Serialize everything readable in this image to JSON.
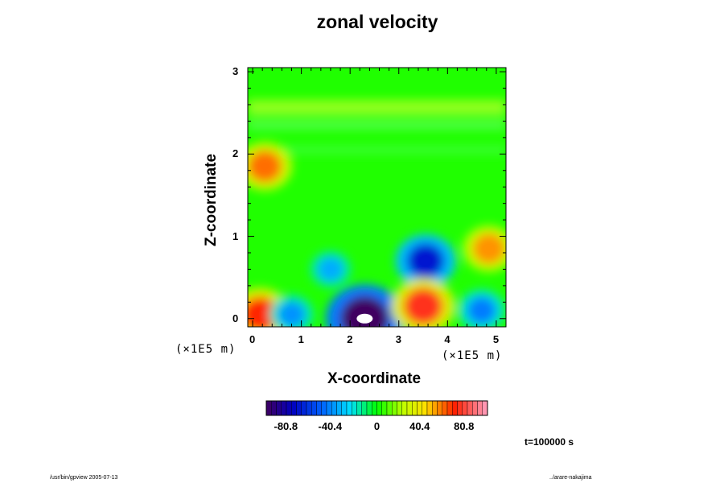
{
  "chart_data": {
    "type": "heatmap",
    "title": "zonal velocity",
    "xlabel": "X-coordinate",
    "ylabel": "Z-coordinate",
    "x_unit": "(×1E5 m)",
    "y_unit": "(×1E5 m)",
    "xlim": [
      -0.1,
      5.2
    ],
    "ylim": [
      -0.1,
      3.05
    ],
    "x_ticks": [
      "0",
      "1",
      "2",
      "3",
      "4",
      "5"
    ],
    "y_ticks": [
      "0",
      "1",
      "2",
      "3"
    ],
    "colorbar": {
      "range": [
        -101,
        101
      ],
      "tick_values": [
        -80.8,
        -40.4,
        0,
        40.4,
        80.8
      ],
      "tick_labels": [
        "-80.8",
        "-40.4",
        "0",
        "40.4",
        "80.8"
      ],
      "colormap": "rainbow (purple-blue-cyan-green-yellow-red-pink)"
    },
    "features": [
      {
        "x": 2.3,
        "z": 0.0,
        "value": -101
      },
      {
        "x": 3.55,
        "z": 0.7,
        "value": -70
      },
      {
        "x": 3.5,
        "z": 0.15,
        "value": 75
      },
      {
        "x": 0.15,
        "z": 0.05,
        "value": 70
      },
      {
        "x": 4.85,
        "z": 0.85,
        "value": 55
      },
      {
        "x": 0.25,
        "z": 1.85,
        "value": 60
      },
      {
        "x": 4.7,
        "z": 0.1,
        "value": -45
      },
      {
        "x": 1.6,
        "z": 0.6,
        "value": -35
      },
      {
        "x": 0.8,
        "z": 0.05,
        "value": -40
      }
    ],
    "grid": false,
    "legend": "colorbar bottom"
  },
  "time_label": "t=100000 s",
  "footer": {
    "left": "/usr/bin/gpview 2005-07-13",
    "right": "../arare-nakajima"
  },
  "colors": {
    "background": "#00ff00",
    "frame": "#000000"
  }
}
